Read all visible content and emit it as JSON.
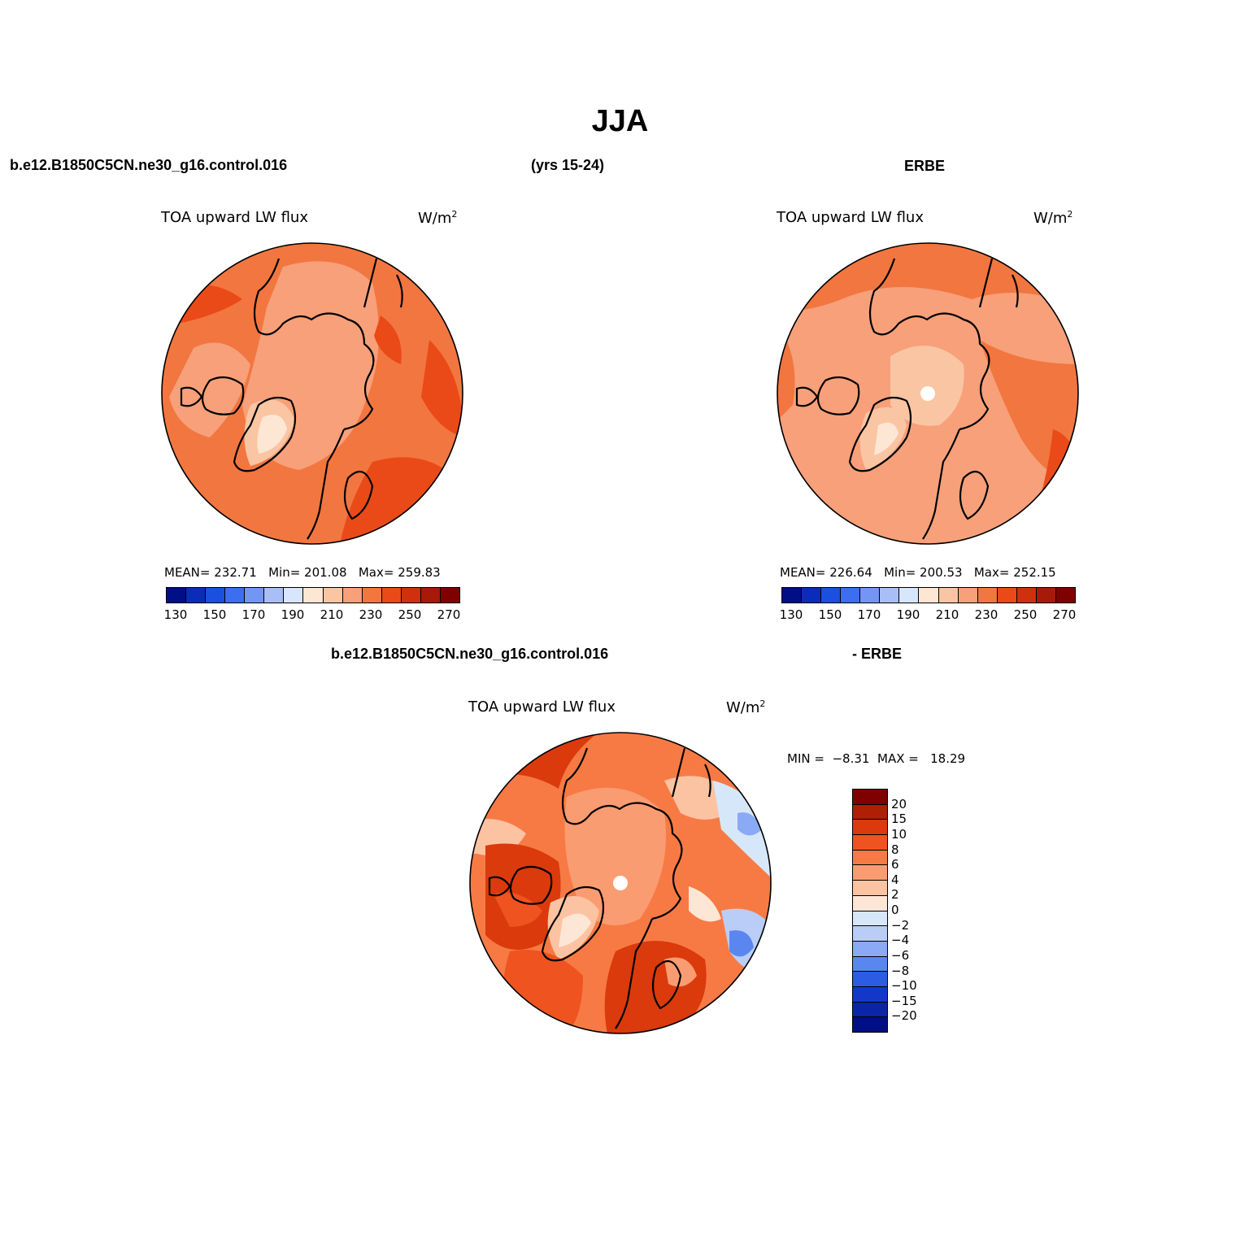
{
  "figure_title": "JJA",
  "top_header": {
    "case_name": "b.e12.B1850C5CN.ne30_g16.control.016",
    "years": "(yrs 15-24)",
    "obs_name": "ERBE"
  },
  "panels": {
    "model": {
      "title": "TOA upward LW flux",
      "units_prefix": "W/m",
      "units_exp": "2",
      "mean_label": "MEAN=",
      "mean_value": "232.71",
      "min_label": "Min=",
      "min_value": "201.08",
      "max_label": "Max=",
      "max_value": "259.83",
      "map_icon": "north-polar-stereographic-map"
    },
    "obs": {
      "title": "TOA upward LW flux",
      "units_prefix": "W/m",
      "units_exp": "2",
      "mean_label": "MEAN=",
      "mean_value": "226.64",
      "min_label": "Min=",
      "min_value": "200.53",
      "max_label": "Max=",
      "max_value": "252.15",
      "map_icon": "north-polar-stereographic-map"
    },
    "diff": {
      "header_left": "b.e12.B1850C5CN.ne30_g16.control.016",
      "header_right": "- ERBE",
      "title": "TOA upward LW flux",
      "units_prefix": "W/m",
      "units_exp": "2",
      "min_label": "MIN =",
      "min_value": "−8.31",
      "max_label": "MAX =",
      "max_value": "18.29",
      "map_icon": "north-polar-stereographic-map"
    }
  },
  "abs_colorbar": {
    "colors": [
      "#000f86",
      "#0a2cb8",
      "#1a4fe0",
      "#3b6ff0",
      "#7396f5",
      "#a9bdf7",
      "#d7e6fa",
      "#fde6d4",
      "#fac5a3",
      "#f7a07a",
      "#f27640",
      "#ea4a18",
      "#cf300d",
      "#a81a08",
      "#7f0000"
    ],
    "tick_labels": [
      "130",
      "150",
      "170",
      "190",
      "210",
      "230",
      "250",
      "270"
    ]
  },
  "diff_colorbar": {
    "colors": [
      "#7f0000",
      "#b01e05",
      "#da3a0c",
      "#ef5420",
      "#f77a45",
      "#fa9c72",
      "#fcc3a2",
      "#fde6d6",
      "#d7e7fa",
      "#b9cdf7",
      "#8aaaf5",
      "#5a86ef",
      "#2d5be4",
      "#1537c9",
      "#0a25a8",
      "#000f86"
    ],
    "tick_labels": [
      "20",
      "15",
      "10",
      "8",
      "6",
      "4",
      "2",
      "0",
      "−2",
      "−4",
      "−6",
      "−8",
      "−10",
      "−15",
      "−20"
    ]
  }
}
